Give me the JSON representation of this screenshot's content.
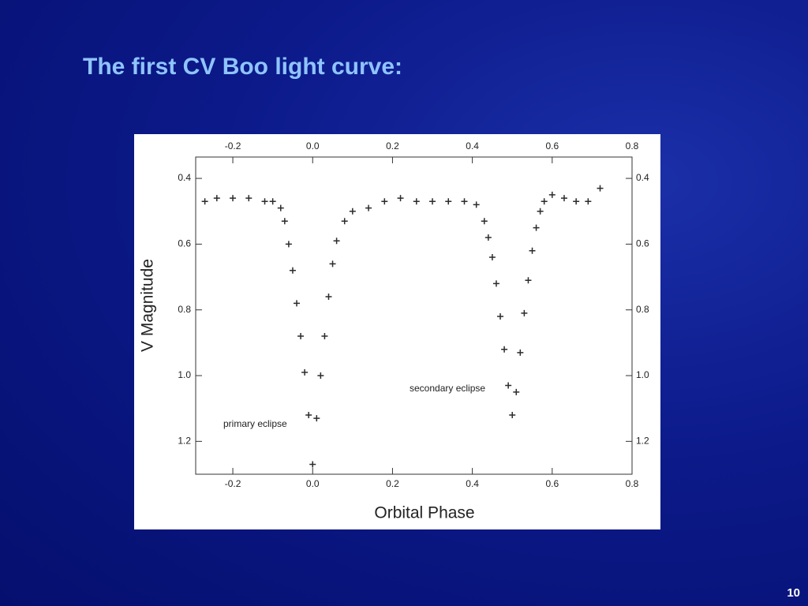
{
  "slide": {
    "title": "The first CV Boo light curve:",
    "page_number": "10"
  },
  "chart_data": {
    "type": "scatter",
    "x_label": "Orbital Phase",
    "y_label": "V Magnitude",
    "annotations": [
      "primary eclipse",
      "secondary eclipse"
    ],
    "x": [
      -0.27,
      -0.24,
      -0.2,
      -0.16,
      -0.12,
      -0.1,
      -0.08,
      -0.07,
      -0.06,
      -0.05,
      -0.04,
      -0.03,
      -0.02,
      -0.01,
      0,
      0.01,
      0.02,
      0.03,
      0.04,
      0.05,
      0.06,
      0.08,
      0.1,
      0.14,
      0.18,
      0.22,
      0.26,
      0.3,
      0.34,
      0.38,
      0.41,
      0.43,
      0.44,
      0.45,
      0.46,
      0.47,
      0.48,
      0.49,
      0.5,
      0.51,
      0.52,
      0.53,
      0.54,
      0.55,
      0.56,
      0.57,
      0.58,
      0.6,
      0.63,
      0.66,
      0.69,
      0.72
    ],
    "values": [
      0.47,
      0.46,
      0.46,
      0.46,
      0.47,
      0.47,
      0.49,
      0.53,
      0.6,
      0.68,
      0.78,
      0.88,
      0.99,
      1.12,
      1.27,
      1.13,
      1.0,
      0.88,
      0.76,
      0.66,
      0.59,
      0.53,
      0.5,
      0.49,
      0.47,
      0.46,
      0.47,
      0.47,
      0.47,
      0.47,
      0.48,
      0.53,
      0.58,
      0.64,
      0.72,
      0.82,
      0.92,
      1.03,
      1.12,
      1.05,
      0.93,
      0.81,
      0.71,
      0.62,
      0.55,
      0.5,
      0.47,
      0.45,
      0.46,
      0.47,
      0.47,
      0.43
    ],
    "color": "#2b2b2b",
    "xlim": [
      -0.293,
      0.8
    ],
    "ylim": [
      0.335,
      1.3
    ],
    "y_reversed": true,
    "xticks": [
      -0.2,
      {
        "value": 0,
        "label": "0.0"
      },
      0.2,
      0.4,
      0.6,
      0.8
    ],
    "yticks": [
      0.4,
      0.6,
      0.8,
      {
        "value": 1,
        "label": "1.0"
      },
      1.2
    ]
  }
}
